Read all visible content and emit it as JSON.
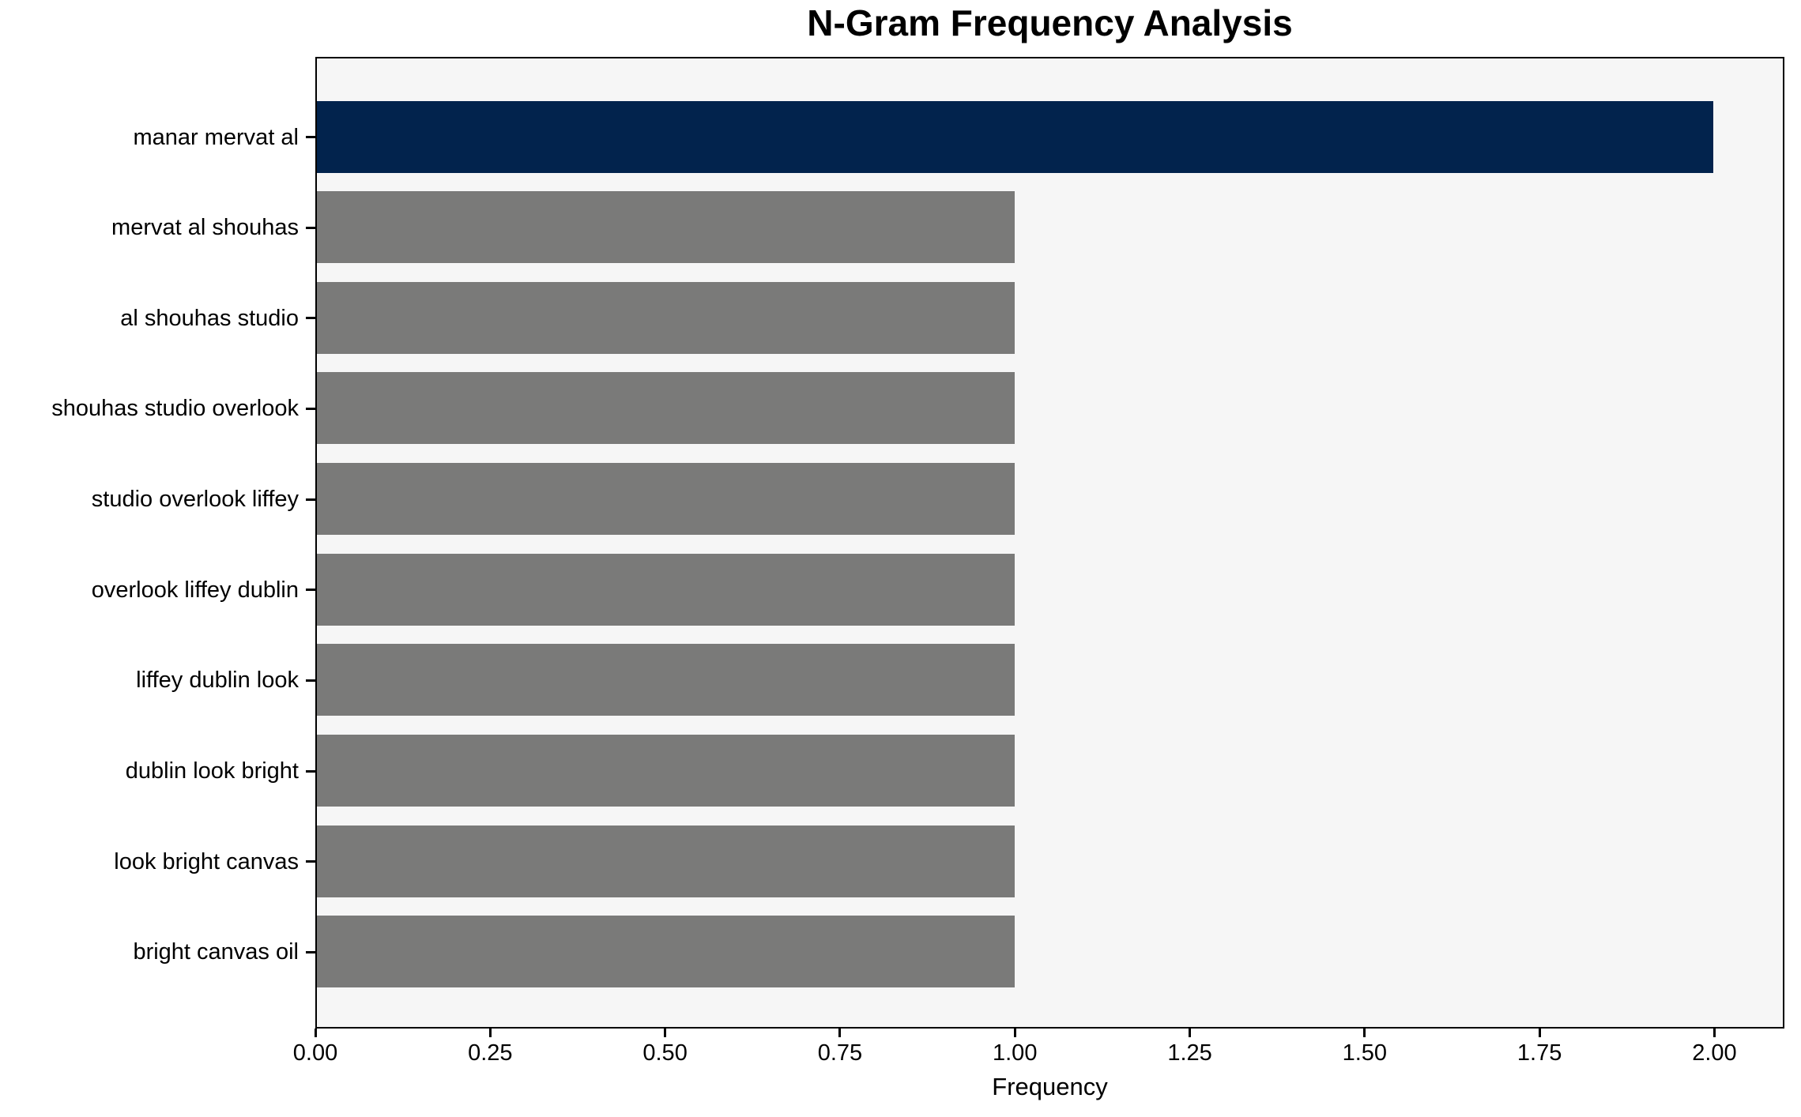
{
  "chart_data": {
    "type": "bar",
    "orientation": "horizontal",
    "title": "N-Gram Frequency Analysis",
    "xlabel": "Frequency",
    "categories": [
      "manar mervat al",
      "mervat al shouhas",
      "al shouhas studio",
      "shouhas studio overlook",
      "studio overlook liffey",
      "overlook liffey dublin",
      "liffey dublin look",
      "dublin look bright",
      "look bright canvas",
      "bright canvas oil"
    ],
    "values": [
      2,
      1,
      1,
      1,
      1,
      1,
      1,
      1,
      1,
      1
    ],
    "xlim": [
      0,
      2.1
    ],
    "xticks": [
      0,
      0.25,
      0.5,
      0.75,
      1.0,
      1.25,
      1.5,
      1.75,
      2.0
    ],
    "xtick_labels": [
      "0.00",
      "0.25",
      "0.50",
      "0.75",
      "1.00",
      "1.25",
      "1.50",
      "1.75",
      "2.00"
    ],
    "highlight_index": 0,
    "grid": false,
    "colors": {
      "highlight_bar": "#02234d",
      "default_bar": "#7a7a79",
      "plot_background": "#f6f6f6",
      "figure_background": "#ffffff",
      "spine": "#000000",
      "text": "#000000"
    }
  }
}
